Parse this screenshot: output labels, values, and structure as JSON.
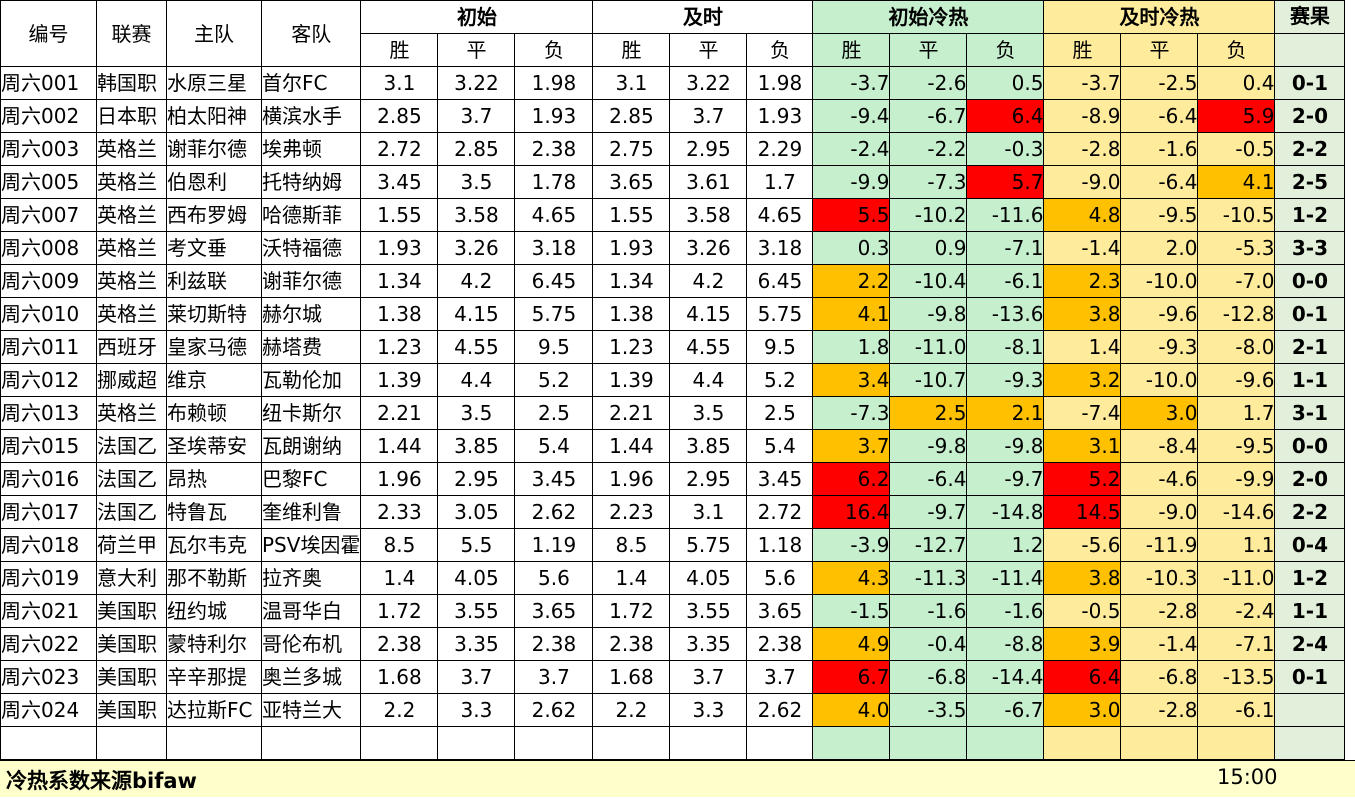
{
  "headers": {
    "id": "编号",
    "league": "联赛",
    "home": "主队",
    "away": "客队",
    "initial": "初始",
    "live": "及时",
    "initial_heat": "初始冷热",
    "live_heat": "及时冷热",
    "result": "赛果",
    "win": "胜",
    "draw": "平",
    "loss": "负"
  },
  "rows": [
    {
      "id": "周六001",
      "league": "韩国职",
      "home": "水原三星",
      "away": "首尔FC",
      "i_w": "3.1",
      "i_d": "3.22",
      "i_l": "1.98",
      "l_w": "3.1",
      "l_d": "3.22",
      "l_l": "1.98",
      "ih_w": "-3.7",
      "ih_d": "-2.6",
      "ih_l": "0.5",
      "lh_w": "-3.7",
      "lh_d": "-2.5",
      "lh_l": "0.4",
      "result": "0-1"
    },
    {
      "id": "周六002",
      "league": "日本职",
      "home": "柏太阳神",
      "away": "横滨水手",
      "i_w": "2.85",
      "i_d": "3.7",
      "i_l": "1.93",
      "l_w": "2.85",
      "l_d": "3.7",
      "l_l": "1.93",
      "ih_w": "-9.4",
      "ih_d": "-6.7",
      "ih_l": "6.4",
      "lh_w": "-8.9",
      "lh_d": "-6.4",
      "lh_l": "5.9",
      "result": "2-0"
    },
    {
      "id": "周六003",
      "league": "英格兰",
      "home": "谢菲尔德",
      "away": "埃弗顿",
      "i_w": "2.72",
      "i_d": "2.85",
      "i_l": "2.38",
      "l_w": "2.75",
      "l_d": "2.95",
      "l_l": "2.29",
      "ih_w": "-2.4",
      "ih_d": "-2.2",
      "ih_l": "-0.3",
      "lh_w": "-2.8",
      "lh_d": "-1.6",
      "lh_l": "-0.5",
      "result": "2-2"
    },
    {
      "id": "周六005",
      "league": "英格兰",
      "home": "伯恩利",
      "away": "托特纳姆",
      "i_w": "3.45",
      "i_d": "3.5",
      "i_l": "1.78",
      "l_w": "3.65",
      "l_d": "3.61",
      "l_l": "1.7",
      "ih_w": "-9.9",
      "ih_d": "-7.3",
      "ih_l": "5.7",
      "lh_w": "-9.0",
      "lh_d": "-6.4",
      "lh_l": "4.1",
      "result": "2-5"
    },
    {
      "id": "周六007",
      "league": "英格兰",
      "home": "西布罗姆",
      "away": "哈德斯菲",
      "i_w": "1.55",
      "i_d": "3.58",
      "i_l": "4.65",
      "l_w": "1.55",
      "l_d": "3.58",
      "l_l": "4.65",
      "ih_w": "5.5",
      "ih_d": "-10.2",
      "ih_l": "-11.6",
      "lh_w": "4.8",
      "lh_d": "-9.5",
      "lh_l": "-10.5",
      "result": "1-2"
    },
    {
      "id": "周六008",
      "league": "英格兰",
      "home": "考文垂",
      "away": "沃特福德",
      "i_w": "1.93",
      "i_d": "3.26",
      "i_l": "3.18",
      "l_w": "1.93",
      "l_d": "3.26",
      "l_l": "3.18",
      "ih_w": "0.3",
      "ih_d": "0.9",
      "ih_l": "-7.1",
      "lh_w": "-1.4",
      "lh_d": "2.0",
      "lh_l": "-5.3",
      "result": "3-3"
    },
    {
      "id": "周六009",
      "league": "英格兰",
      "home": "利兹联",
      "away": "谢菲尔德",
      "i_w": "1.34",
      "i_d": "4.2",
      "i_l": "6.45",
      "l_w": "1.34",
      "l_d": "4.2",
      "l_l": "6.45",
      "ih_w": "2.2",
      "ih_d": "-10.4",
      "ih_l": "-6.1",
      "lh_w": "2.3",
      "lh_d": "-10.0",
      "lh_l": "-7.0",
      "result": "0-0"
    },
    {
      "id": "周六010",
      "league": "英格兰",
      "home": "莱切斯特",
      "away": "赫尔城",
      "i_w": "1.38",
      "i_d": "4.15",
      "i_l": "5.75",
      "l_w": "1.38",
      "l_d": "4.15",
      "l_l": "5.75",
      "ih_w": "4.1",
      "ih_d": "-9.8",
      "ih_l": "-13.6",
      "lh_w": "3.8",
      "lh_d": "-9.6",
      "lh_l": "-12.8",
      "result": "0-1"
    },
    {
      "id": "周六011",
      "league": "西班牙",
      "home": "皇家马德",
      "away": "赫塔费",
      "i_w": "1.23",
      "i_d": "4.55",
      "i_l": "9.5",
      "l_w": "1.23",
      "l_d": "4.55",
      "l_l": "9.5",
      "ih_w": "1.8",
      "ih_d": "-11.0",
      "ih_l": "-8.1",
      "lh_w": "1.4",
      "lh_d": "-9.3",
      "lh_l": "-8.0",
      "result": "2-1"
    },
    {
      "id": "周六012",
      "league": "挪威超",
      "home": "维京",
      "away": "瓦勒伦加",
      "i_w": "1.39",
      "i_d": "4.4",
      "i_l": "5.2",
      "l_w": "1.39",
      "l_d": "4.4",
      "l_l": "5.2",
      "ih_w": "3.4",
      "ih_d": "-10.7",
      "ih_l": "-9.3",
      "lh_w": "3.2",
      "lh_d": "-10.0",
      "lh_l": "-9.6",
      "result": "1-1"
    },
    {
      "id": "周六013",
      "league": "英格兰",
      "home": "布赖顿",
      "away": "纽卡斯尔",
      "i_w": "2.21",
      "i_d": "3.5",
      "i_l": "2.5",
      "l_w": "2.21",
      "l_d": "3.5",
      "l_l": "2.5",
      "ih_w": "-7.3",
      "ih_d": "2.5",
      "ih_l": "2.1",
      "lh_w": "-7.4",
      "lh_d": "3.0",
      "lh_l": "1.7",
      "result": "3-1"
    },
    {
      "id": "周六015",
      "league": "法国乙",
      "home": "圣埃蒂安",
      "away": "瓦朗谢纳",
      "i_w": "1.44",
      "i_d": "3.85",
      "i_l": "5.4",
      "l_w": "1.44",
      "l_d": "3.85",
      "l_l": "5.4",
      "ih_w": "3.7",
      "ih_d": "-9.8",
      "ih_l": "-9.8",
      "lh_w": "3.1",
      "lh_d": "-8.4",
      "lh_l": "-9.5",
      "result": "0-0"
    },
    {
      "id": "周六016",
      "league": "法国乙",
      "home": "昂热",
      "away": "巴黎FC",
      "i_w": "1.96",
      "i_d": "2.95",
      "i_l": "3.45",
      "l_w": "1.96",
      "l_d": "2.95",
      "l_l": "3.45",
      "ih_w": "6.2",
      "ih_d": "-6.4",
      "ih_l": "-9.7",
      "lh_w": "5.2",
      "lh_d": "-4.6",
      "lh_l": "-9.9",
      "result": "2-0"
    },
    {
      "id": "周六017",
      "league": "法国乙",
      "home": "特鲁瓦",
      "away": "奎维利鲁",
      "i_w": "2.33",
      "i_d": "3.05",
      "i_l": "2.62",
      "l_w": "2.23",
      "l_d": "3.1",
      "l_l": "2.72",
      "ih_w": "16.4",
      "ih_d": "-9.7",
      "ih_l": "-14.8",
      "lh_w": "14.5",
      "lh_d": "-9.0",
      "lh_l": "-14.6",
      "result": "2-2"
    },
    {
      "id": "周六018",
      "league": "荷兰甲",
      "home": "瓦尔韦克",
      "away": "PSV埃因霍",
      "i_w": "8.5",
      "i_d": "5.5",
      "i_l": "1.19",
      "l_w": "8.5",
      "l_d": "5.75",
      "l_l": "1.18",
      "ih_w": "-3.9",
      "ih_d": "-12.7",
      "ih_l": "1.2",
      "lh_w": "-5.6",
      "lh_d": "-11.9",
      "lh_l": "1.1",
      "result": "0-4"
    },
    {
      "id": "周六019",
      "league": "意大利",
      "home": "那不勒斯",
      "away": "拉齐奥",
      "i_w": "1.4",
      "i_d": "4.05",
      "i_l": "5.6",
      "l_w": "1.4",
      "l_d": "4.05",
      "l_l": "5.6",
      "ih_w": "4.3",
      "ih_d": "-11.3",
      "ih_l": "-11.4",
      "lh_w": "3.8",
      "lh_d": "-10.3",
      "lh_l": "-11.0",
      "result": "1-2"
    },
    {
      "id": "周六021",
      "league": "美国职",
      "home": "纽约城",
      "away": "温哥华白",
      "i_w": "1.72",
      "i_d": "3.55",
      "i_l": "3.65",
      "l_w": "1.72",
      "l_d": "3.55",
      "l_l": "3.65",
      "ih_w": "-1.5",
      "ih_d": "-1.6",
      "ih_l": "-1.6",
      "lh_w": "-0.5",
      "lh_d": "-2.8",
      "lh_l": "-2.4",
      "result": "1-1"
    },
    {
      "id": "周六022",
      "league": "美国职",
      "home": "蒙特利尔",
      "away": "哥伦布机",
      "i_w": "2.38",
      "i_d": "3.35",
      "i_l": "2.38",
      "l_w": "2.38",
      "l_d": "3.35",
      "l_l": "2.38",
      "ih_w": "4.9",
      "ih_d": "-0.4",
      "ih_l": "-8.8",
      "lh_w": "3.9",
      "lh_d": "-1.4",
      "lh_l": "-7.1",
      "result": "2-4"
    },
    {
      "id": "周六023",
      "league": "美国职",
      "home": "辛辛那提",
      "away": "奥兰多城",
      "i_w": "1.68",
      "i_d": "3.7",
      "i_l": "3.7",
      "l_w": "1.68",
      "l_d": "3.7",
      "l_l": "3.7",
      "ih_w": "6.7",
      "ih_d": "-6.8",
      "ih_l": "-14.4",
      "lh_w": "6.4",
      "lh_d": "-6.8",
      "lh_l": "-13.5",
      "result": "0-1"
    },
    {
      "id": "周六024",
      "league": "美国职",
      "home": "达拉斯FC",
      "away": "亚特兰大",
      "i_w": "2.2",
      "i_d": "3.3",
      "i_l": "2.62",
      "l_w": "2.2",
      "l_d": "3.3",
      "l_l": "2.62",
      "ih_w": "4.0",
      "ih_d": "-3.5",
      "ih_l": "-6.7",
      "lh_w": "3.0",
      "lh_d": "-2.8",
      "lh_l": "-6.1",
      "result": ""
    }
  ],
  "highlights": {
    "red": "#ff0000",
    "orange": "#ffc000",
    "green_bg": "#c6efce",
    "yellow_bg": "#ffeb9c",
    "cells": {
      "1": {
        "ih_l": "red",
        "lh_l": "red"
      },
      "3": {
        "ih_l": "red",
        "lh_l": "orange"
      },
      "4": {
        "ih_w": "red",
        "lh_w": "orange"
      },
      "6": {
        "ih_w": "orange",
        "lh_w": "orange"
      },
      "7": {
        "ih_w": "orange",
        "lh_w": "orange"
      },
      "9": {
        "ih_w": "orange",
        "lh_w": "orange"
      },
      "10": {
        "ih_d": "orange",
        "ih_l": "orange",
        "lh_d": "orange"
      },
      "11": {
        "ih_w": "orange",
        "lh_w": "orange"
      },
      "12": {
        "ih_w": "red",
        "lh_w": "red"
      },
      "13": {
        "ih_w": "red",
        "lh_w": "red"
      },
      "15": {
        "ih_w": "orange",
        "lh_w": "orange"
      },
      "17": {
        "ih_w": "orange",
        "lh_w": "orange"
      },
      "18": {
        "ih_w": "red",
        "lh_w": "red"
      },
      "19": {
        "ih_w": "orange",
        "lh_w": "orange"
      }
    }
  },
  "footer": {
    "source": "冷热系数来源bifaw",
    "time": "15:00"
  }
}
